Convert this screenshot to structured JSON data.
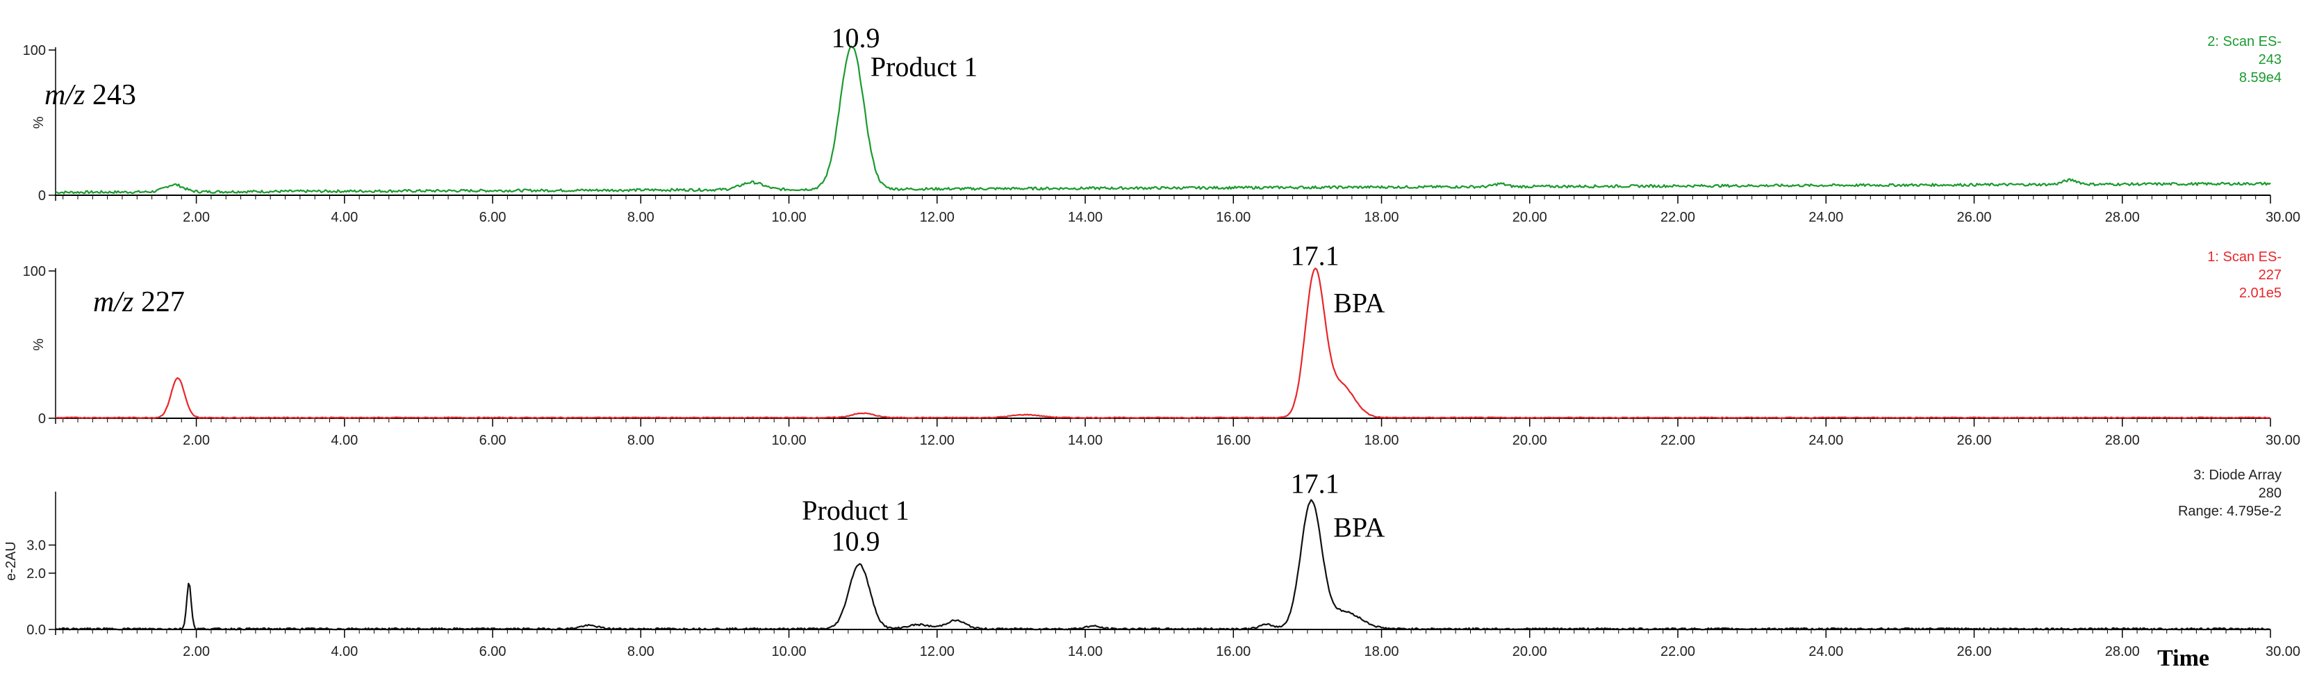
{
  "chart_data": [
    {
      "type": "line",
      "panel": "mz243",
      "mz_prefix": "m/z",
      "mz_value": "243",
      "color": "#1a9a2e",
      "info": [
        "2: Scan ES-",
        "243",
        "8.59e4"
      ],
      "y_ticks": [
        "100",
        "%",
        "0"
      ],
      "xlim": [
        0.1,
        30.0
      ],
      "ylim": [
        0,
        100
      ],
      "x_ticks": [
        "2.00",
        "4.00",
        "6.00",
        "8.00",
        "10.00",
        "12.00",
        "14.00",
        "16.00",
        "18.00",
        "20.00",
        "22.00",
        "24.00",
        "26.00",
        "28.00",
        "30.00"
      ],
      "annotations": [
        {
          "text": "10.9",
          "x": 10.9,
          "y": 102
        },
        {
          "text": "Product 1",
          "x": 11.1,
          "y": 82
        }
      ],
      "baseline": 2,
      "baseline_end": 8,
      "noise_amp": 0.9,
      "peaks": [
        {
          "x": 1.7,
          "h": 5,
          "w": 0.12
        },
        {
          "x": 9.5,
          "h": 5,
          "w": 0.15
        },
        {
          "x": 10.85,
          "h": 98,
          "w": 0.16
        },
        {
          "x": 19.6,
          "h": 2,
          "w": 0.08
        },
        {
          "x": 27.3,
          "h": 3,
          "w": 0.1
        }
      ]
    },
    {
      "type": "line",
      "panel": "mz227",
      "mz_prefix": "m/z",
      "mz_value": "227",
      "color": "#e8262a",
      "info": [
        "1: Scan ES-",
        "227",
        "2.01e5"
      ],
      "y_ticks": [
        "100",
        "%",
        "0"
      ],
      "xlim": [
        0.1,
        30.0
      ],
      "ylim": [
        0,
        100
      ],
      "x_ticks": [
        "2.00",
        "4.00",
        "6.00",
        "8.00",
        "10.00",
        "12.00",
        "14.00",
        "16.00",
        "18.00",
        "20.00",
        "22.00",
        "24.00",
        "26.00",
        "28.00",
        "30.00"
      ],
      "annotations": [
        {
          "text": "17.1",
          "x": 17.1,
          "y": 104
        },
        {
          "text": "BPA",
          "x": 17.35,
          "y": 72
        }
      ],
      "baseline": 0.4,
      "baseline_end": 0.4,
      "noise_amp": 0.3,
      "peaks": [
        {
          "x": 1.75,
          "h": 27,
          "w": 0.09
        },
        {
          "x": 11.0,
          "h": 3,
          "w": 0.15
        },
        {
          "x": 13.2,
          "h": 2,
          "w": 0.2
        },
        {
          "x": 17.1,
          "h": 98,
          "w": 0.13
        },
        {
          "x": 17.45,
          "h": 22,
          "w": 0.18
        }
      ]
    },
    {
      "type": "line",
      "panel": "diode",
      "color": "#111111",
      "info": [
        "3: Diode Array",
        "280",
        "Range: 4.795e-2"
      ],
      "y_unit": "e-2AU",
      "y_ticks": [
        "3.0",
        "2.0",
        "0.0"
      ],
      "y_tick_values": [
        3.0,
        2.0,
        0.0
      ],
      "xlim": [
        0.1,
        30.0
      ],
      "ylim": [
        -0.1,
        4.8
      ],
      "x_ticks": [
        "2.00",
        "4.00",
        "6.00",
        "8.00",
        "10.00",
        "12.00",
        "14.00",
        "16.00",
        "18.00",
        "20.00",
        "22.00",
        "24.00",
        "26.00",
        "28.00",
        "30.00"
      ],
      "xlabel": "Time",
      "annotations": [
        {
          "text": "Product 1",
          "x": 10.9,
          "y": 3.9
        },
        {
          "text": "10.9",
          "x": 10.9,
          "y": 2.8
        },
        {
          "text": "17.1",
          "x": 17.1,
          "y": 4.85
        },
        {
          "text": "BPA",
          "x": 17.35,
          "y": 3.3
        }
      ],
      "baseline": 0.02,
      "baseline_end": 0.02,
      "noise_amp": 0.03,
      "peaks": [
        {
          "x": 1.9,
          "h": 1.65,
          "w": 0.03
        },
        {
          "x": 7.3,
          "h": 0.12,
          "w": 0.12
        },
        {
          "x": 10.95,
          "h": 2.3,
          "w": 0.14
        },
        {
          "x": 11.75,
          "h": 0.15,
          "w": 0.15
        },
        {
          "x": 12.25,
          "h": 0.3,
          "w": 0.13
        },
        {
          "x": 14.1,
          "h": 0.1,
          "w": 0.1
        },
        {
          "x": 16.45,
          "h": 0.15,
          "w": 0.1
        },
        {
          "x": 17.05,
          "h": 4.5,
          "w": 0.14
        },
        {
          "x": 17.5,
          "h": 0.6,
          "w": 0.22
        }
      ]
    }
  ]
}
